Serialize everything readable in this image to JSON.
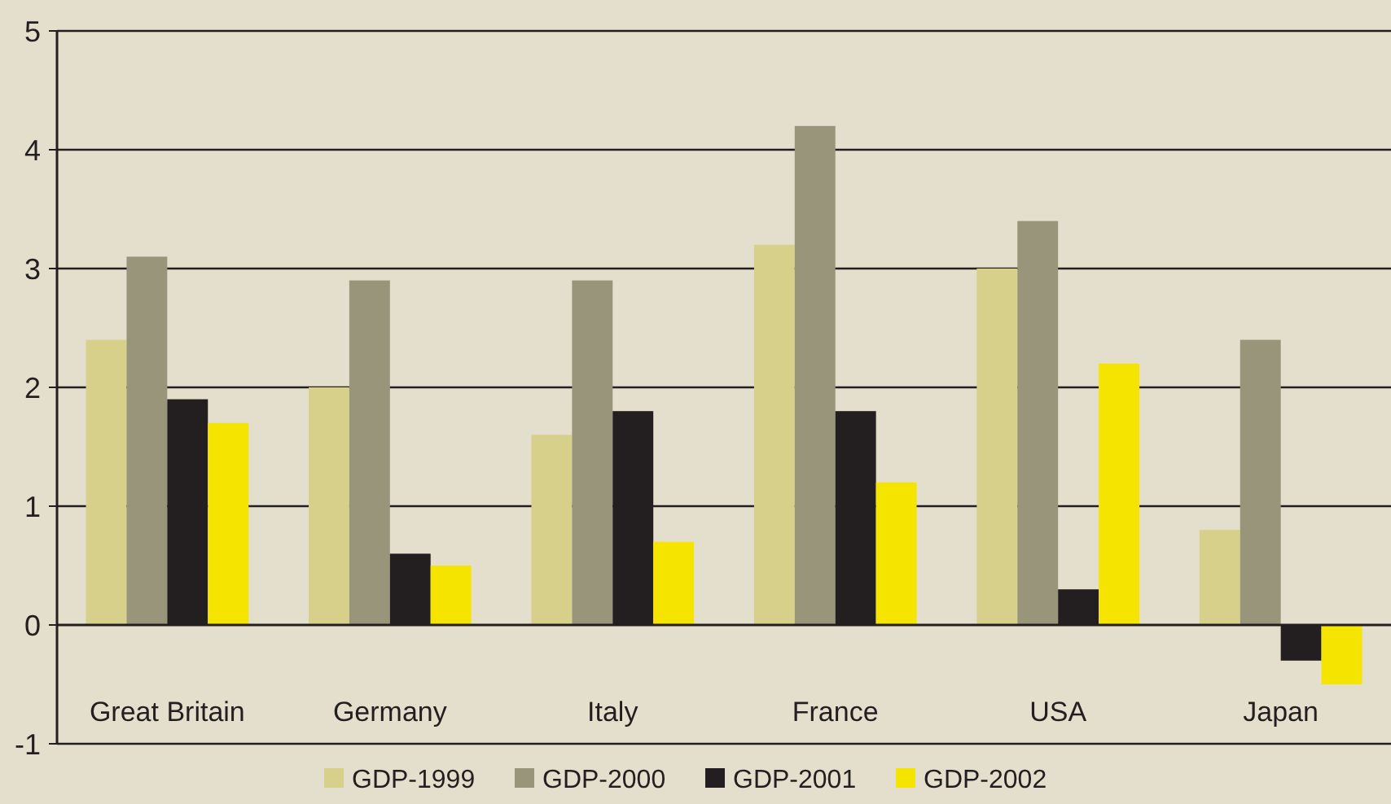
{
  "chart_data": {
    "type": "bar",
    "categories": [
      "Great Britain",
      "Germany",
      "Italy",
      "France",
      "USA",
      "Japan"
    ],
    "series": [
      {
        "name": "GDP-1999",
        "color": "#d6d08a",
        "values": [
          2.4,
          2.0,
          1.6,
          3.2,
          3.0,
          0.8
        ]
      },
      {
        "name": "GDP-2000",
        "color": "#99957a",
        "values": [
          3.1,
          2.9,
          2.9,
          4.2,
          3.4,
          2.4
        ]
      },
      {
        "name": "GDP-2001",
        "color": "#231f20",
        "values": [
          1.9,
          0.6,
          1.8,
          1.8,
          0.3,
          -0.3
        ]
      },
      {
        "name": "GDP-2002",
        "color": "#f5e400",
        "values": [
          1.7,
          0.5,
          0.7,
          1.2,
          2.2,
          -0.5
        ]
      }
    ],
    "ylim": [
      -1,
      5
    ],
    "yticks": [
      -1,
      0,
      1,
      2,
      3,
      4,
      5
    ],
    "grid": "y",
    "legend": "bottom"
  }
}
